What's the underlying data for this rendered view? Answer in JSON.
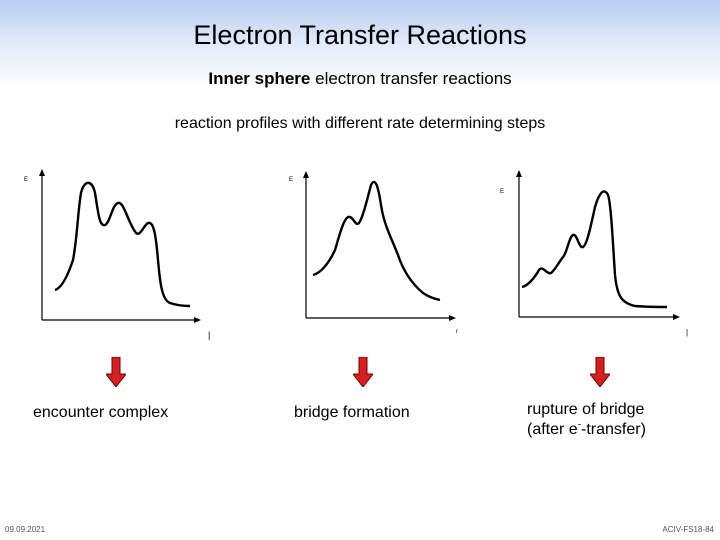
{
  "slide": {
    "title": "Electron Transfer Reactions",
    "subtitle_bold": "Inner sphere",
    "subtitle_rest": " electron transfer reactions",
    "caption": "reaction profiles with different rate determining steps"
  },
  "panels": [
    {
      "label": "encounter complex",
      "y_tick": "E",
      "x_tick": "|"
    },
    {
      "label": "bridge formation",
      "y_tick": "E",
      "x_tick": "r"
    },
    {
      "label_line1": "rupture of bridge",
      "label_line2_pre": "(after e",
      "label_line2_sup": "-",
      "label_line2_post": "-transfer)",
      "y_tick": "E",
      "x_tick": "|"
    }
  ],
  "colors": {
    "arrow": "#d62020",
    "arrow_border": "#7a0000"
  },
  "footer": {
    "date": "09.09.2021",
    "code": "ACIV-FS18-84"
  }
}
